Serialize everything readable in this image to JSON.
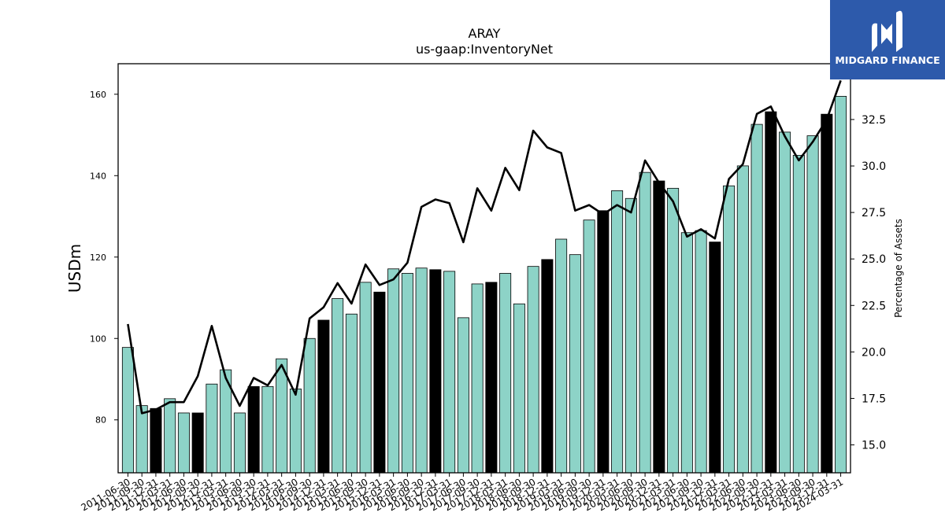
{
  "chart_data": {
    "type": "bar",
    "title": "ARAY",
    "subtitle": "us-gaap:InventoryNet",
    "ylabel": "USDm",
    "y2label": "Percentage of Assets",
    "ylim": [
      67,
      167.5
    ],
    "y2lim": [
      13.5,
      35.5
    ],
    "yticks": [
      80,
      100,
      120,
      140,
      160
    ],
    "y2ticks": [
      "15.0",
      "17.5",
      "20.0",
      "22.5",
      "25.0",
      "27.5",
      "30.0",
      "32.5"
    ],
    "categories": [
      "2011-06-30",
      "2011-09-30",
      "2011-12-31",
      "2012-03-31",
      "2012-06-30",
      "2012-09-30",
      "2012-12-31",
      "2013-03-31",
      "2013-06-30",
      "2013-09-30",
      "2013-12-31",
      "2014-03-31",
      "2014-06-30",
      "2014-09-30",
      "2014-12-31",
      "2015-03-31",
      "2015-06-30",
      "2015-09-30",
      "2015-12-31",
      "2016-03-31",
      "2016-06-30",
      "2016-09-30",
      "2016-12-31",
      "2017-03-31",
      "2017-06-30",
      "2017-09-30",
      "2017-12-31",
      "2018-03-31",
      "2018-06-30",
      "2018-09-30",
      "2018-12-31",
      "2019-03-31",
      "2019-06-30",
      "2019-09-30",
      "2019-12-31",
      "2020-03-31",
      "2020-06-30",
      "2020-09-30",
      "2020-12-31",
      "2021-03-31",
      "2021-06-30",
      "2021-09-30",
      "2021-12-31",
      "2022-03-31",
      "2022-06-30",
      "2022-09-30",
      "2022-12-31",
      "2023-03-31",
      "2023-06-30",
      "2023-09-30",
      "2023-12-31",
      "2024-03-31"
    ],
    "series": [
      {
        "name": "",
        "type": "bar",
        "axis": "left",
        "values": [
          97.8,
          83.5,
          82.8,
          85.2,
          81.7,
          81.7,
          88.8,
          92.3,
          81.7,
          88.2,
          88.2,
          95.0,
          87.6,
          100.0,
          104.5,
          109.8,
          106.0,
          113.8,
          111.4,
          117.1,
          116.0,
          117.3,
          116.9,
          116.5,
          105.1,
          113.4,
          113.8,
          116.0,
          108.5,
          117.7,
          119.4,
          124.4,
          120.6,
          129.1,
          131.4,
          136.3,
          134.4,
          140.8,
          138.7,
          136.9,
          126.0,
          126.5,
          123.7,
          137.5,
          142.4,
          152.6,
          155.7,
          150.7,
          145.0,
          149.8,
          155.1,
          159.5
        ],
        "highlight": [
          false,
          false,
          true,
          false,
          false,
          true,
          false,
          false,
          false,
          true,
          false,
          false,
          false,
          false,
          true,
          false,
          false,
          false,
          true,
          false,
          false,
          false,
          true,
          false,
          false,
          false,
          true,
          false,
          false,
          false,
          true,
          false,
          false,
          false,
          true,
          false,
          false,
          false,
          true,
          false,
          false,
          false,
          true,
          false,
          false,
          false,
          true,
          false,
          false,
          false,
          true,
          false
        ]
      },
      {
        "name": "",
        "type": "line",
        "axis": "right",
        "values": [
          21.5,
          16.7,
          16.9,
          17.3,
          17.3,
          18.7,
          21.4,
          18.6,
          17.1,
          18.6,
          18.2,
          19.3,
          17.7,
          21.8,
          22.4,
          23.7,
          22.6,
          24.7,
          23.6,
          23.9,
          24.8,
          27.8,
          28.2,
          28.0,
          25.9,
          28.8,
          27.6,
          29.9,
          28.7,
          31.9,
          31.0,
          30.7,
          27.6,
          27.9,
          27.4,
          27.9,
          27.5,
          30.3,
          29.1,
          28.1,
          26.2,
          26.6,
          26.1,
          29.3,
          30.1,
          32.8,
          33.2,
          31.6,
          30.3,
          31.3,
          32.5,
          34.6
        ]
      }
    ],
    "colors": {
      "bar": "#8dd3c7",
      "bar_highlight": "#000000",
      "line": "#000000"
    }
  },
  "logo": {
    "text": "MIDGARD FINANCE"
  }
}
